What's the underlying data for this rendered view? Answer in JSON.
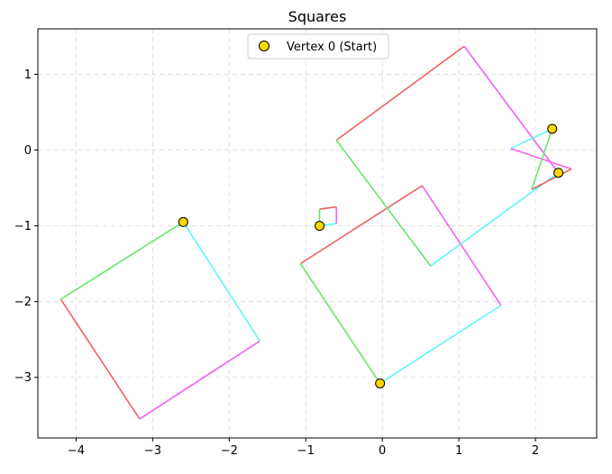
{
  "chart_data": {
    "type": "line",
    "title": "Squares",
    "xlabel": "",
    "ylabel": "",
    "xlim": [
      -4.5,
      2.8
    ],
    "ylim": [
      -3.8,
      1.6
    ],
    "x_ticks": [
      -4,
      -3,
      -2,
      -1,
      0,
      1,
      2
    ],
    "x_tick_labels": [
      "−4",
      "−3",
      "−2",
      "−1",
      "0",
      "1",
      "2"
    ],
    "y_ticks": [
      1,
      0,
      -1,
      -2,
      -3
    ],
    "y_tick_labels": [
      "1",
      "0",
      "−1",
      "−2",
      "−3"
    ],
    "grid": true,
    "legend": {
      "location": "upper center",
      "entries": [
        "Vertex 0 (Start)"
      ]
    },
    "edge_colors": {
      "cyan": "#5ff5f5",
      "green": "#66e666",
      "magenta": "#f55ff5",
      "red": "#f06060"
    },
    "marker_color": "#ffd700",
    "squares": [
      {
        "vertices": [
          [
            -2.6,
            -0.95
          ],
          [
            -1.6,
            -2.52
          ],
          [
            -3.17,
            -3.55
          ],
          [
            -4.2,
            -1.97
          ]
        ],
        "start": true
      },
      {
        "vertices": [
          [
            -0.03,
            -3.08
          ],
          [
            1.55,
            -2.05
          ],
          [
            0.52,
            -0.47
          ],
          [
            -1.07,
            -1.5
          ]
        ],
        "start": true
      },
      {
        "vertices": [
          [
            -0.82,
            -1.0
          ],
          [
            -0.6,
            -0.97
          ],
          [
            -0.6,
            -0.75
          ],
          [
            -0.82,
            -0.78
          ]
        ],
        "start": true
      },
      {
        "vertices": [
          [
            0.63,
            -1.53
          ],
          [
            2.3,
            -0.3
          ],
          [
            1.07,
            1.37
          ],
          [
            -0.6,
            0.13
          ]
        ],
        "start": false
      },
      {
        "vertices": [
          [
            2.22,
            0.28
          ],
          [
            1.68,
            0.02
          ],
          [
            2.47,
            -0.25
          ],
          [
            1.95,
            -0.52
          ]
        ],
        "start": true
      },
      {
        "vertices": [
          [
            2.3,
            -0.3
          ]
        ],
        "start": true
      }
    ]
  }
}
